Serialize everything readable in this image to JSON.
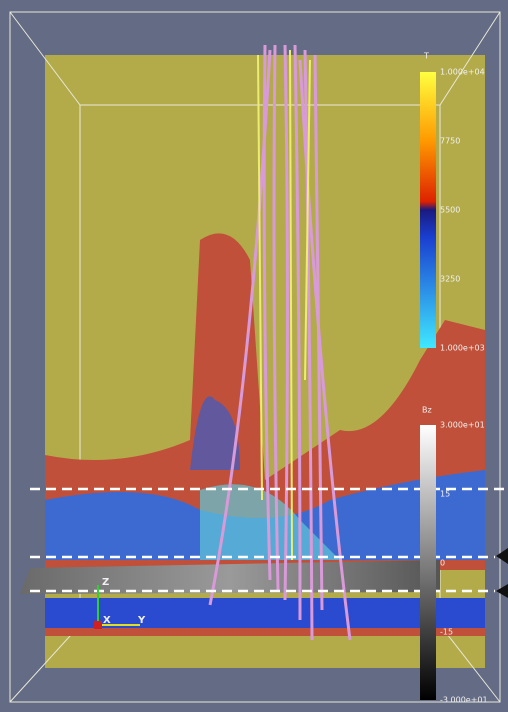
{
  "colorbars": [
    {
      "title": "T",
      "labels": [
        "1.000e+04",
        "7750",
        "5500",
        "3250",
        "1.000e+03"
      ]
    },
    {
      "title": "Bz",
      "labels": [
        "3.000e+01",
        "15",
        "0",
        "-15",
        "-3.000e+01"
      ]
    }
  ],
  "axes": {
    "z": "Z",
    "x": "X",
    "y": "Y"
  }
}
